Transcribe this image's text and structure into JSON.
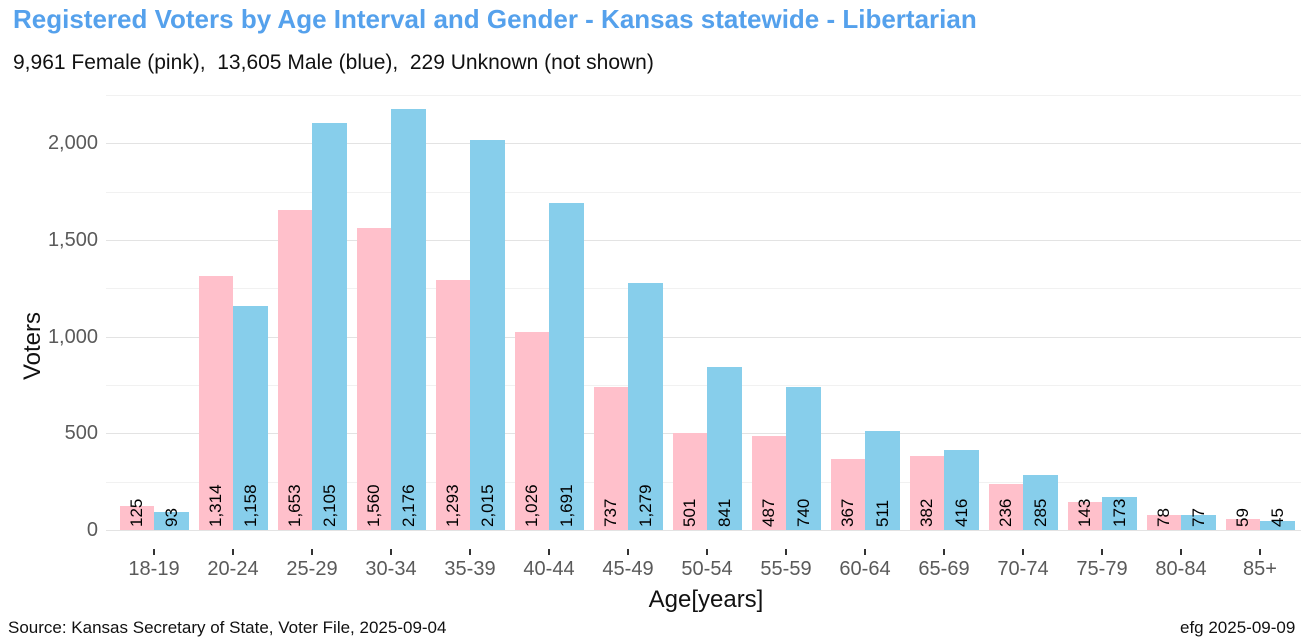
{
  "colors": {
    "title": "#55A1EC",
    "female_pink": "#FFC0CB",
    "male_blue": "#87CEEB",
    "axis_tick_text": "#5A5A5A",
    "grid_major": "#E3E3E3",
    "grid_minor": "#F1F1F1",
    "tick_mark": "#333333",
    "text": "#111111"
  },
  "footer": {
    "source": "Source: Kansas Secretary of State, Voter File, 2025-09-04",
    "credit": "efg 2025-09-09"
  },
  "chart_data": {
    "type": "bar",
    "title": "Registered Voters by Age Interval and Gender - Kansas statewide - Libertarian",
    "subtitle": "9,961 Female (pink),  13,605 Male (blue),  229 Unknown (not shown)",
    "xlabel": "Age[years]",
    "ylabel": "Voters",
    "categories": [
      "18-19",
      "20-24",
      "25-29",
      "30-34",
      "35-39",
      "40-44",
      "45-49",
      "50-54",
      "55-59",
      "60-64",
      "65-69",
      "70-74",
      "75-79",
      "80-84",
      "85+"
    ],
    "series": [
      {
        "name": "Female",
        "color": "#FFC0CB",
        "total": 9961,
        "values": [
          125,
          1314,
          1653,
          1560,
          1293,
          1026,
          737,
          501,
          487,
          367,
          382,
          236,
          143,
          78,
          59
        ]
      },
      {
        "name": "Male",
        "color": "#87CEEB",
        "total": 13605,
        "values": [
          93,
          1158,
          2105,
          2176,
          2015,
          1691,
          1279,
          841,
          740,
          511,
          416,
          285,
          173,
          77,
          45
        ]
      }
    ],
    "unknown_total": 229,
    "ylim": [
      0,
      2285
    ],
    "yticks": {
      "values": [
        0,
        500,
        1000,
        1500,
        2000
      ],
      "labels": [
        "0",
        "500",
        "1,000",
        "1,500",
        "2,000"
      ]
    },
    "y_minor_gridlines": [
      250,
      750,
      1250,
      1750,
      2250
    ],
    "grid": "horizontal major and minor gridlines, light grey on white, no vertical gridlines",
    "legend": "none (series colors explained in subtitle)",
    "bar_value_labels": "value printed vertically (rotated 90 deg CCW) at base of each bar, thousands separated by comma"
  }
}
